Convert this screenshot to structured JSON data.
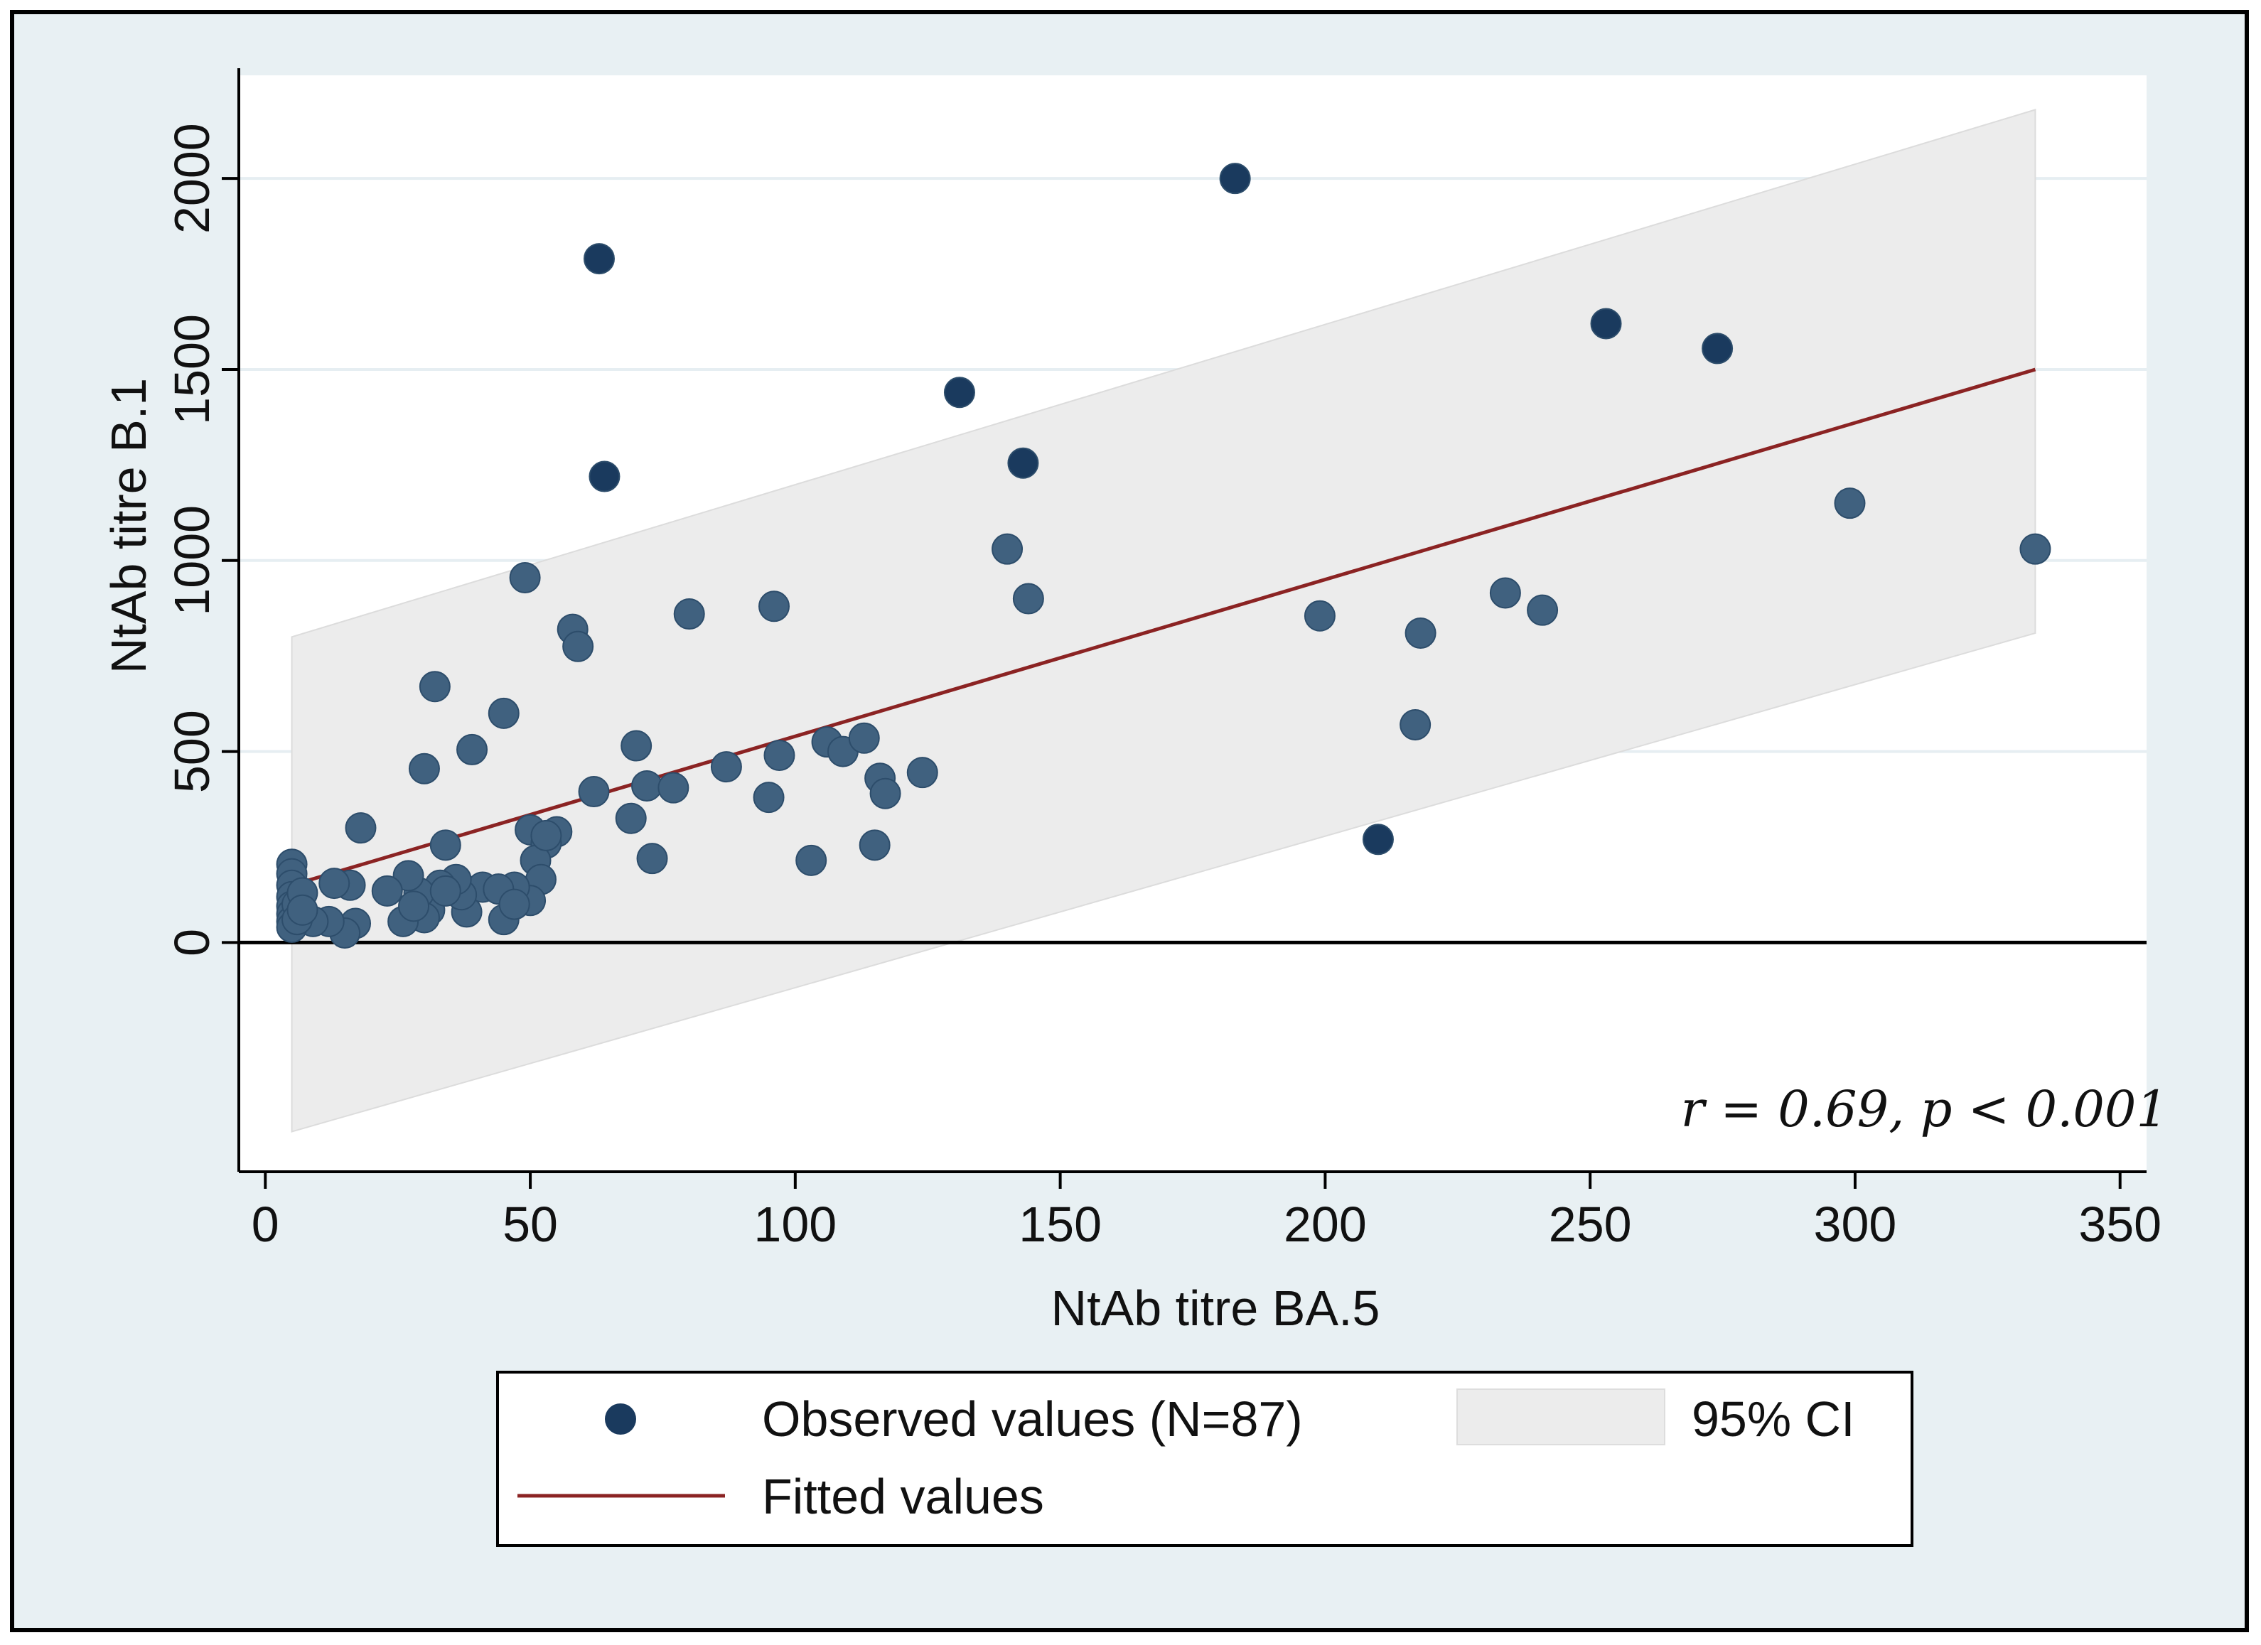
{
  "chart_data": {
    "type": "scatter",
    "xlabel": "NtAb titre BA.5",
    "ylabel": "NtAb titre B.1",
    "xlim": [
      -5,
      355
    ],
    "ylim": [
      -600,
      2270
    ],
    "xticks": [
      0,
      50,
      100,
      150,
      200,
      250,
      300,
      350
    ],
    "yticks": [
      0,
      500,
      1000,
      1500,
      2000
    ],
    "annotation": "r = 0.69, p < 0.001",
    "fit": {
      "x0": 5,
      "y0": 150,
      "x1": 334,
      "y1": 1500
    },
    "ci": {
      "x0": 5,
      "upper0": 800,
      "lower0": -495,
      "x1": 334,
      "upper1": 2180,
      "lower1": 810
    },
    "colors": {
      "point": "#40617f",
      "point_dark": "#1a3a5e",
      "fit": "#8b2323",
      "ci": "#ececec",
      "plot_bg": "#ffffff",
      "frame_bg": "#e8f0f3",
      "grid": "#e6eef2"
    },
    "points": [
      [
        63,
        1790
      ],
      [
        183,
        2000
      ],
      [
        131,
        1440
      ],
      [
        64,
        1220
      ],
      [
        210,
        270
      ],
      [
        253,
        1620
      ],
      [
        274,
        1555
      ],
      [
        299,
        1150
      ],
      [
        334,
        1030
      ],
      [
        143,
        1255
      ],
      [
        140,
        1030
      ],
      [
        144,
        900
      ],
      [
        234,
        915
      ],
      [
        241,
        870
      ],
      [
        199,
        855
      ],
      [
        218,
        810
      ],
      [
        217,
        570
      ],
      [
        49,
        955
      ],
      [
        58,
        820
      ],
      [
        59,
        775
      ],
      [
        80,
        860
      ],
      [
        96,
        880
      ],
      [
        32,
        670
      ],
      [
        30,
        455
      ],
      [
        39,
        505
      ],
      [
        45,
        600
      ],
      [
        70,
        515
      ],
      [
        72,
        410
      ],
      [
        77,
        405
      ],
      [
        87,
        460
      ],
      [
        95,
        380
      ],
      [
        97,
        490
      ],
      [
        106,
        525
      ],
      [
        109,
        500
      ],
      [
        113,
        535
      ],
      [
        116,
        430
      ],
      [
        117,
        390
      ],
      [
        124,
        445
      ],
      [
        115,
        255
      ],
      [
        62,
        395
      ],
      [
        69,
        325
      ],
      [
        73,
        220
      ],
      [
        103,
        215
      ],
      [
        18,
        300
      ],
      [
        34,
        255
      ],
      [
        50,
        295
      ],
      [
        55,
        290
      ],
      [
        53,
        260
      ],
      [
        51,
        215
      ],
      [
        52,
        165
      ],
      [
        50,
        110
      ],
      [
        47,
        145
      ],
      [
        45,
        60
      ],
      [
        41,
        145
      ],
      [
        38,
        80
      ],
      [
        37,
        125
      ],
      [
        36,
        165
      ],
      [
        33,
        150
      ],
      [
        31,
        85
      ],
      [
        30,
        65
      ],
      [
        29,
        130
      ],
      [
        27,
        175
      ],
      [
        26,
        55
      ],
      [
        23,
        135
      ],
      [
        17,
        50
      ],
      [
        16,
        150
      ],
      [
        15,
        25
      ],
      [
        13,
        155
      ],
      [
        12,
        55
      ],
      [
        9,
        55
      ],
      [
        5,
        205
      ],
      [
        5,
        180
      ],
      [
        5,
        150
      ],
      [
        5,
        120
      ],
      [
        5,
        95
      ],
      [
        5,
        75
      ],
      [
        5,
        55
      ],
      [
        5,
        40
      ],
      [
        6,
        100
      ],
      [
        6,
        60
      ],
      [
        7,
        130
      ],
      [
        7,
        85
      ],
      [
        28,
        95
      ],
      [
        34,
        135
      ],
      [
        44,
        140
      ],
      [
        47,
        100
      ],
      [
        53,
        280
      ]
    ],
    "legend": {
      "observed": "Observed values (N=87)",
      "ci": "95% CI",
      "fitted": "Fitted values"
    }
  }
}
